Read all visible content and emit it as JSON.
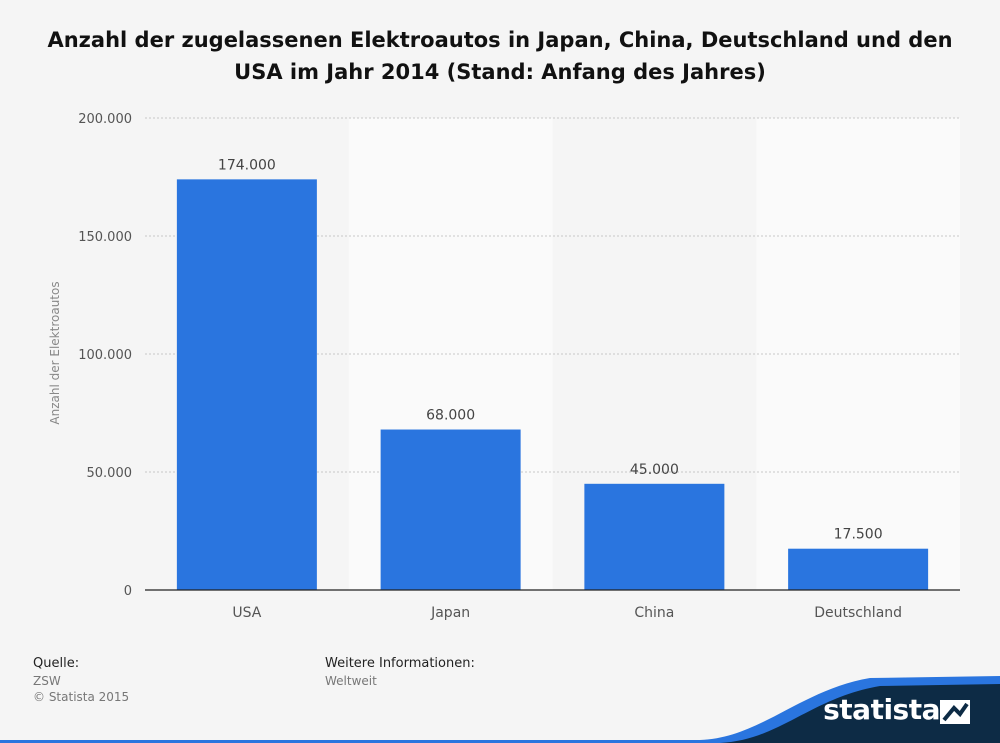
{
  "chart_data": {
    "type": "bar",
    "title": "Anzahl der zugelassenen Elektroautos in Japan, China, Deutschland und den USA im Jahr 2014 (Stand: Anfang des Jahres)",
    "ylabel": "Anzahl der Elektroautos",
    "xlabel": "",
    "categories": [
      "USA",
      "Japan",
      "China",
      "Deutschland"
    ],
    "values": [
      174000,
      68000,
      45000,
      17500
    ],
    "value_labels": [
      "174.000",
      "68.000",
      "45.000",
      "17.500"
    ],
    "ylim": [
      0,
      200000
    ],
    "yticks": [
      0,
      50000,
      100000,
      150000,
      200000
    ],
    "ytick_labels": [
      "0",
      "50.000",
      "100.000",
      "150.000",
      "200.000"
    ],
    "grid": true,
    "bar_color": "#2a75df"
  },
  "source": {
    "label": "Quelle:",
    "name": "ZSW",
    "copyright": "© Statista 2015"
  },
  "info": {
    "label": "Weitere Informationen:",
    "value": "Weltweit"
  },
  "brand": {
    "name": "statista",
    "color": "#0d2b45",
    "accent": "#2a75df"
  }
}
